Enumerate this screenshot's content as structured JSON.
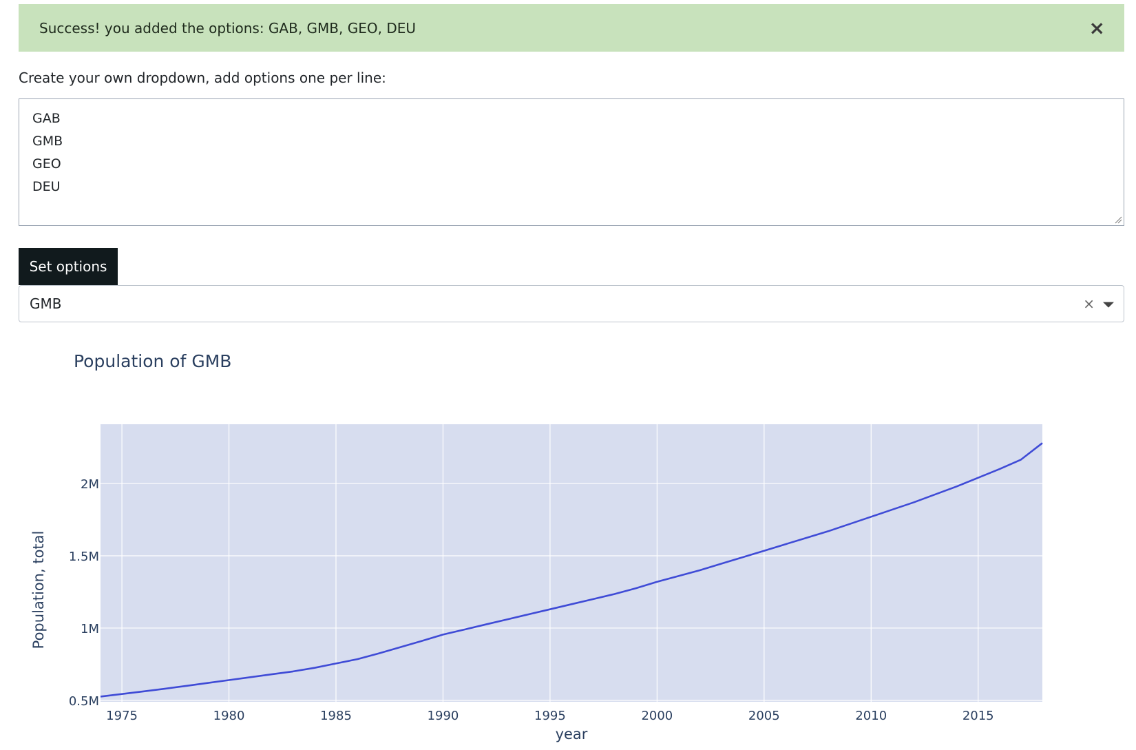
{
  "alert": {
    "message": "Success! you added the options: GAB, GMB, GEO, DEU",
    "close_label": "×"
  },
  "instructions": "Create your own dropdown, add options one per line:",
  "textarea": {
    "lines": [
      "GAB",
      "GMB",
      "GEO",
      "DEU"
    ]
  },
  "set_button_label": "Set options",
  "dropdown": {
    "selected": "GMB",
    "clear_label": "×"
  },
  "chart_data": {
    "type": "line",
    "title": "Population of GMB",
    "xlabel": "year",
    "ylabel": "Population, total",
    "xlim": [
      1974,
      2018
    ],
    "ylim": [
      0.49,
      2.41
    ],
    "grid": true,
    "x_ticks": [
      1975,
      1980,
      1985,
      1990,
      1995,
      2000,
      2005,
      2010,
      2015
    ],
    "y_ticks": [
      {
        "value": 0.5,
        "label": "0.5M"
      },
      {
        "value": 1,
        "label": "1M"
      },
      {
        "value": 1.5,
        "label": "1.5M"
      },
      {
        "value": 2,
        "label": "2M"
      }
    ],
    "series": [
      {
        "x": [
          1974,
          1975,
          1976,
          1977,
          1978,
          1979,
          1980,
          1981,
          1982,
          1983,
          1984,
          1985,
          1986,
          1987,
          1988,
          1989,
          1990,
          1991,
          1992,
          1993,
          1994,
          1995,
          1996,
          1997,
          1998,
          1999,
          2000,
          2001,
          2002,
          2003,
          2004,
          2005,
          2006,
          2007,
          2008,
          2009,
          2010,
          2011,
          2012,
          2013,
          2014,
          2015,
          2016,
          2017,
          2018
        ],
        "y": [
          0.526,
          0.544,
          0.562,
          0.58,
          0.6,
          0.62,
          0.64,
          0.66,
          0.68,
          0.7,
          0.725,
          0.755,
          0.785,
          0.825,
          0.868,
          0.91,
          0.955,
          0.99,
          1.025,
          1.06,
          1.095,
          1.13,
          1.165,
          1.2,
          1.235,
          1.275,
          1.32,
          1.36,
          1.4,
          1.445,
          1.49,
          1.535,
          1.58,
          1.625,
          1.67,
          1.72,
          1.77,
          1.82,
          1.87,
          1.925,
          1.98,
          2.04,
          2.1,
          2.165,
          2.28
        ],
        "color": "#3f4bd6"
      }
    ],
    "plot_background": "#d7ddef",
    "grid_color": "#ffffff"
  }
}
